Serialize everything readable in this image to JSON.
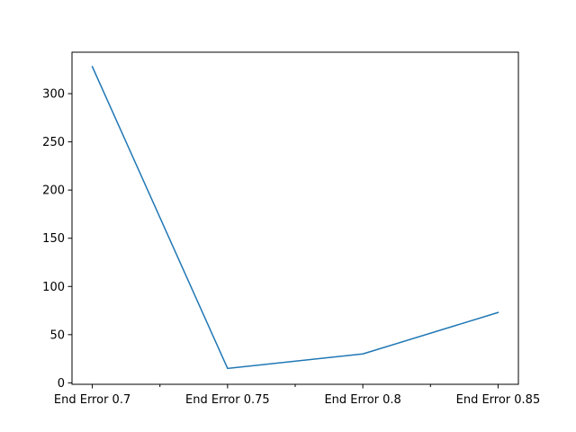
{
  "chart_data": {
    "type": "line",
    "title": "",
    "xlabel": "",
    "ylabel": "",
    "categories": [
      "End Error 0.7",
      "End Error 0.75",
      "End Error 0.8",
      "End Error 0.85"
    ],
    "x_minor_ticks": true,
    "y_ticks": [
      0,
      50,
      100,
      150,
      200,
      250,
      300
    ],
    "ylim": [
      -1.5,
      343
    ],
    "grid": false,
    "legend": "none",
    "series": [
      {
        "color": "#1f77b4",
        "values": [
          328,
          15,
          30,
          73
        ]
      }
    ]
  }
}
